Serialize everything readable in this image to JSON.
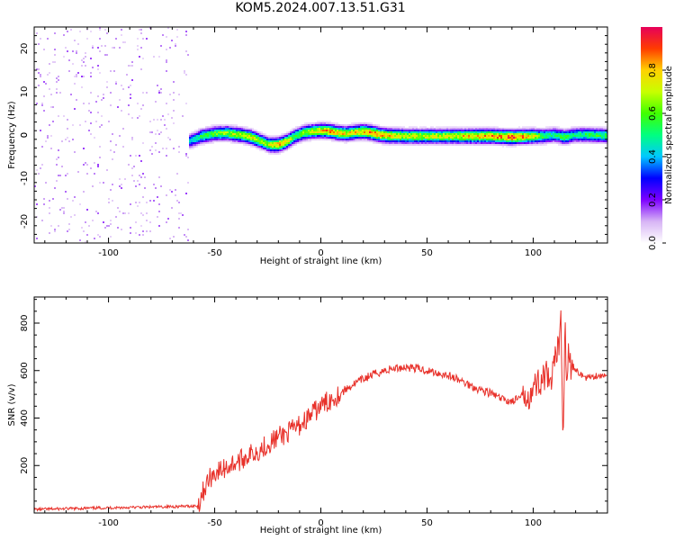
{
  "figure": {
    "title": "KOM5.2024.007.13.51.G31"
  },
  "chart_data": [
    {
      "type": "heatmap",
      "title": "",
      "xlabel": "Height of straight line (km)",
      "ylabel": "Frequency (Hz)",
      "xlim": [
        -135,
        135
      ],
      "ylim": [
        -25,
        25
      ],
      "x_ticks": [
        -100,
        -50,
        0,
        50,
        100
      ],
      "y_ticks": [
        -20,
        -10,
        0,
        10,
        20
      ],
      "colorbar": {
        "label": "Normalized spectral amplitude",
        "range": [
          0,
          1
        ],
        "ticks": [
          0.0,
          0.2,
          0.4,
          0.6,
          0.8
        ],
        "colors": [
          "#ffffff",
          "#d7b4f5",
          "#7d00ff",
          "#0000ff",
          "#00c8ff",
          "#00ff80",
          "#40ff00",
          "#c8ff00",
          "#ffd200",
          "#ff3c00",
          "#e6005a"
        ]
      },
      "ridge": {
        "x": [
          -62,
          -56,
          -50,
          -44,
          -38,
          -33,
          -28,
          -24,
          -20,
          -16,
          -12,
          -8,
          -4,
          0,
          4,
          8,
          12,
          16,
          20,
          24,
          28,
          32,
          40,
          50,
          60,
          70,
          80,
          90,
          100,
          105,
          110,
          115,
          120,
          125,
          135
        ],
        "freq": [
          -1.5,
          -0.3,
          0.3,
          0.4,
          0.0,
          -0.5,
          -1.5,
          -2.3,
          -2.3,
          -1.5,
          -0.3,
          0.5,
          0.8,
          1.0,
          0.9,
          0.5,
          0.3,
          0.6,
          0.8,
          0.5,
          0.0,
          -0.2,
          -0.3,
          -0.3,
          -0.3,
          -0.3,
          -0.3,
          -0.5,
          -0.3,
          -0.3,
          0.0,
          -0.5,
          0.0,
          0.0,
          -0.2
        ],
        "amplitude": [
          0.4,
          0.55,
          0.6,
          0.65,
          0.7,
          0.75,
          0.65,
          0.7,
          0.85,
          0.75,
          0.6,
          0.65,
          0.7,
          0.75,
          0.85,
          0.78,
          0.75,
          0.78,
          0.8,
          0.85,
          0.82,
          0.78,
          0.72,
          0.72,
          0.72,
          0.78,
          0.82,
          0.92,
          0.75,
          0.55,
          0.5,
          0.6,
          0.5,
          0.55,
          0.55
        ]
      }
    },
    {
      "type": "line",
      "title": "",
      "xlabel": "Height of straight line (km)",
      "ylabel": "SNR (v/v)",
      "xlim": [
        -135,
        135
      ],
      "ylim": [
        0,
        910
      ],
      "x_ticks": [
        -100,
        -50,
        0,
        50,
        100
      ],
      "y_ticks": [
        200,
        400,
        600,
        800
      ],
      "line_color": "#e8312a",
      "series": [
        {
          "x": [
            -135,
            -120,
            -100,
            -80,
            -65,
            -58,
            -56,
            -54,
            -52,
            -50,
            -47,
            -44,
            -41,
            -38,
            -35,
            -30,
            -25,
            -20,
            -15,
            -10,
            -5,
            0,
            5,
            10,
            15,
            20,
            25,
            30,
            35,
            40,
            45,
            50,
            55,
            60,
            65,
            70,
            75,
            80,
            85,
            90,
            95,
            100,
            103,
            106,
            108,
            110,
            112,
            113,
            114,
            115,
            116,
            117,
            118,
            120,
            125,
            130,
            135
          ],
          "y": [
            15,
            18,
            22,
            25,
            28,
            30,
            80,
            120,
            150,
            170,
            180,
            195,
            210,
            220,
            240,
            260,
            290,
            320,
            340,
            370,
            410,
            450,
            480,
            510,
            540,
            565,
            585,
            600,
            610,
            615,
            610,
            600,
            590,
            580,
            560,
            540,
            520,
            505,
            480,
            470,
            490,
            520,
            560,
            580,
            520,
            620,
            700,
            880,
            320,
            780,
            560,
            720,
            600,
            600,
            570,
            580,
            575
          ]
        }
      ]
    }
  ]
}
